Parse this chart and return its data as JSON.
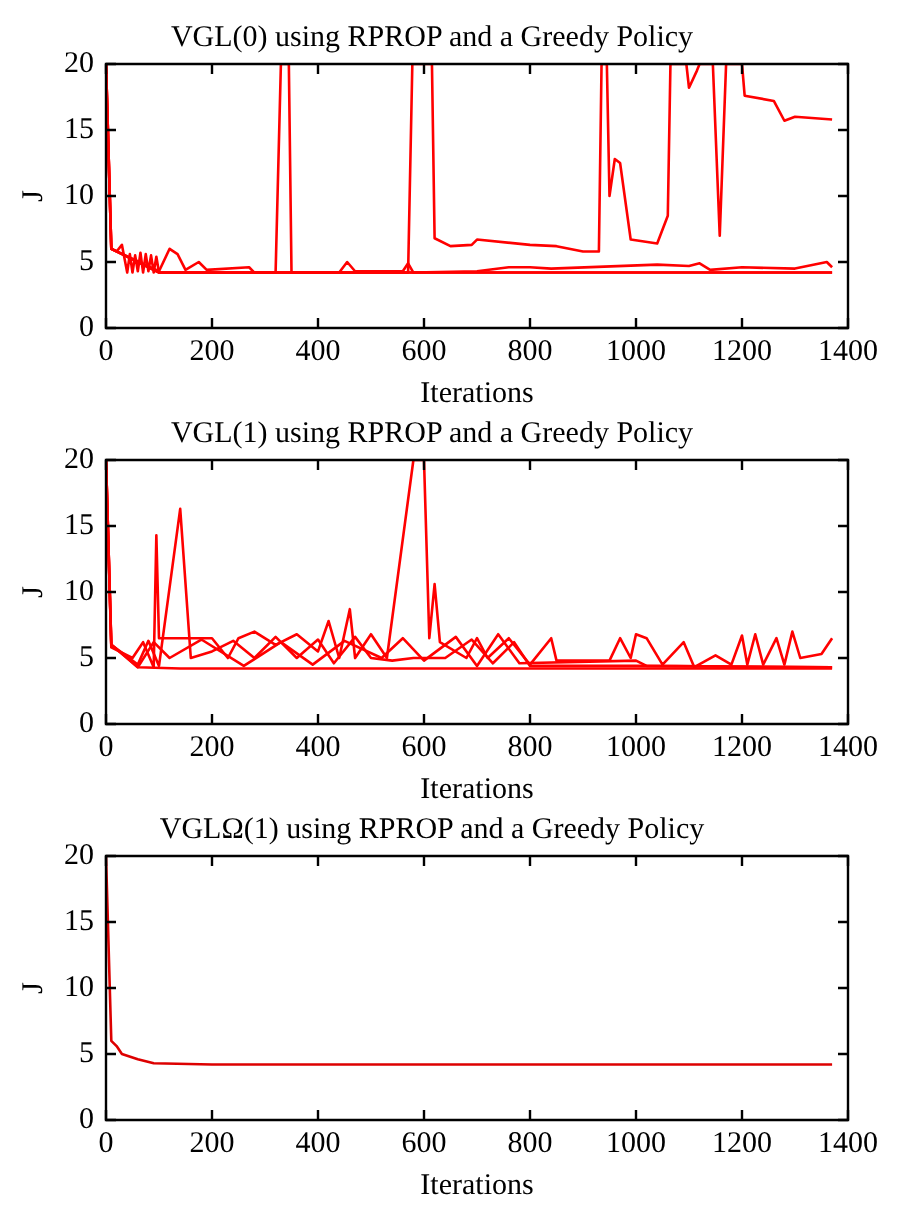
{
  "chart_data": [
    {
      "type": "line",
      "title": "VGL(0) using RPROP and a Greedy Policy",
      "xlabel": "Iterations",
      "ylabel": "J",
      "xlim": [
        0,
        1400
      ],
      "xticks": [
        0,
        200,
        400,
        600,
        800,
        1000,
        1200,
        1400
      ],
      "ylim": [
        0,
        20
      ],
      "yticks": [
        0,
        5,
        10,
        15,
        20
      ],
      "grid": false,
      "legend": false,
      "marker": "none",
      "line_style": "solid",
      "series": [
        {
          "color": "#ff0000",
          "x": [
            0,
            10,
            20,
            30,
            40,
            45,
            50,
            55,
            60,
            65,
            70,
            75,
            80,
            85,
            90,
            95,
            100,
            130,
            200,
            400,
            600,
            800,
            1000,
            1200,
            1370
          ],
          "values": [
            20,
            6,
            5.8,
            6.3,
            4.2,
            5.6,
            4.2,
            5.5,
            4.3,
            5.7,
            4.2,
            5.6,
            4.3,
            5.5,
            4.2,
            5.4,
            4.2,
            4.2,
            4.2,
            4.2,
            4.2,
            4.2,
            4.2,
            4.2,
            4.2
          ]
        },
        {
          "color": "#ff0000",
          "x": [
            0,
            10,
            100,
            320,
            330,
            345,
            350,
            600,
            1370
          ],
          "values": [
            20,
            6,
            4.2,
            4.2,
            20,
            20,
            4.2,
            4.2,
            4.2
          ]
        },
        {
          "color": "#ff0000",
          "x": [
            0,
            10,
            100,
            570,
            578,
            615,
            620,
            650,
            690,
            700,
            800,
            850,
            900,
            930,
            935,
            945,
            950,
            960,
            970,
            990,
            1040,
            1060,
            1065,
            1095,
            1100,
            1115,
            1120,
            1145,
            1158,
            1170,
            1200,
            1205,
            1260,
            1280,
            1300,
            1370
          ],
          "values": [
            20,
            6,
            4.2,
            4.2,
            20,
            20,
            6.8,
            6.2,
            6.3,
            6.7,
            6.3,
            6.2,
            5.8,
            5.8,
            20,
            20,
            10,
            12.8,
            12.5,
            6.7,
            6.4,
            8.5,
            20,
            20,
            18.2,
            19.5,
            20,
            20,
            7,
            20,
            20,
            17.6,
            17.2,
            15.7,
            16,
            15.8
          ]
        },
        {
          "color": "#ff0000",
          "x": [
            0,
            10,
            100,
            120,
            135,
            150,
            175,
            190,
            270,
            280,
            440,
            455,
            470,
            560,
            570,
            580,
            700,
            760,
            800,
            840,
            1040,
            1100,
            1120,
            1140,
            1200,
            1300,
            1360,
            1370
          ],
          "values": [
            20,
            6,
            4.3,
            6,
            5.6,
            4.4,
            5,
            4.4,
            4.6,
            4.2,
            4.2,
            5,
            4.3,
            4.3,
            4.9,
            4.2,
            4.3,
            4.6,
            4.6,
            4.5,
            4.8,
            4.7,
            4.9,
            4.4,
            4.6,
            4.5,
            5,
            4.6
          ]
        }
      ]
    },
    {
      "type": "line",
      "title": "VGL(1) using RPROP and a Greedy Policy",
      "xlabel": "Iterations",
      "ylabel": "J",
      "xlim": [
        0,
        1400
      ],
      "xticks": [
        0,
        200,
        400,
        600,
        800,
        1000,
        1200,
        1400
      ],
      "ylim": [
        0,
        20
      ],
      "yticks": [
        0,
        5,
        10,
        15,
        20
      ],
      "grid": false,
      "legend": false,
      "marker": "none",
      "line_style": "solid",
      "series": [
        {
          "color": "#ff0000",
          "x": [
            0,
            10,
            40,
            60,
            140,
            600,
            1000,
            1370
          ],
          "values": [
            20,
            6,
            5,
            4.3,
            4.2,
            4.2,
            4.2,
            4.2
          ]
        },
        {
          "color": "#ff0000",
          "x": [
            0,
            10,
            50,
            70,
            90,
            95,
            100,
            150,
            200,
            230,
            250,
            280,
            320,
            360,
            400,
            420,
            440,
            460,
            470,
            500,
            530,
            580,
            600,
            610,
            620,
            630,
            680,
            700,
            720,
            760,
            800,
            840,
            850,
            950,
            970,
            990,
            1000,
            1020,
            1050,
            1090,
            1110,
            1150,
            1180,
            1200,
            1210,
            1225,
            1240,
            1265,
            1280,
            1295,
            1310,
            1350,
            1370
          ],
          "values": [
            20,
            5.8,
            5,
            6.2,
            4.3,
            14.3,
            6.5,
            6.5,
            6.5,
            5,
            6.5,
            7,
            6,
            6.8,
            5.5,
            7.8,
            5,
            8.7,
            5,
            6.8,
            5,
            20,
            20,
            6.5,
            10.6,
            6.2,
            5,
            6.5,
            5,
            6.5,
            4.5,
            6.5,
            4.8,
            4.8,
            6.5,
            5,
            6.8,
            6.5,
            4.5,
            6.2,
            4.3,
            5.2,
            4.5,
            6.7,
            4.5,
            6.8,
            4.5,
            6.5,
            4.5,
            7,
            5,
            5.3,
            6.5
          ]
        },
        {
          "color": "#ff0000",
          "x": [
            0,
            10,
            60,
            80,
            100,
            140,
            160,
            200,
            240,
            280,
            320,
            360,
            400,
            430,
            470,
            500,
            540,
            580,
            640,
            690,
            730,
            770,
            800,
            1000,
            1370
          ],
          "values": [
            20,
            6,
            4.5,
            6.3,
            4.4,
            16.3,
            5,
            5.5,
            6.3,
            5,
            6.6,
            5,
            6.4,
            4.6,
            6.6,
            5,
            4.8,
            5,
            5,
            6.4,
            4.6,
            6.2,
            4.4,
            4.4,
            4.3
          ]
        },
        {
          "color": "#ff0000",
          "x": [
            0,
            10,
            60,
            90,
            120,
            180,
            260,
            330,
            390,
            450,
            520,
            560,
            600,
            660,
            700,
            740,
            780,
            1000,
            1020,
            1370
          ],
          "values": [
            20,
            6,
            4.3,
            6.2,
            5,
            6.4,
            4.4,
            6.2,
            4.5,
            6.3,
            5,
            6.5,
            4.8,
            6.6,
            4.4,
            6.8,
            4.6,
            4.8,
            4.4,
            4.3
          ]
        }
      ]
    },
    {
      "type": "line",
      "title": "VGLΩ(1) using RPROP and a Greedy Policy",
      "xlabel": "Iterations",
      "ylabel": "J",
      "xlim": [
        0,
        1400
      ],
      "xticks": [
        0,
        200,
        400,
        600,
        800,
        1000,
        1200,
        1400
      ],
      "ylim": [
        0,
        20
      ],
      "yticks": [
        0,
        5,
        10,
        15,
        20
      ],
      "grid": false,
      "legend": false,
      "marker": "none",
      "line_style": "solid",
      "series": [
        {
          "color": "#dd0000",
          "x": [
            0,
            10,
            20,
            30,
            60,
            90,
            200,
            600,
            1000,
            1370
          ],
          "values": [
            20,
            6,
            5.6,
            5,
            4.6,
            4.3,
            4.2,
            4.2,
            4.2,
            4.2
          ]
        }
      ]
    }
  ]
}
